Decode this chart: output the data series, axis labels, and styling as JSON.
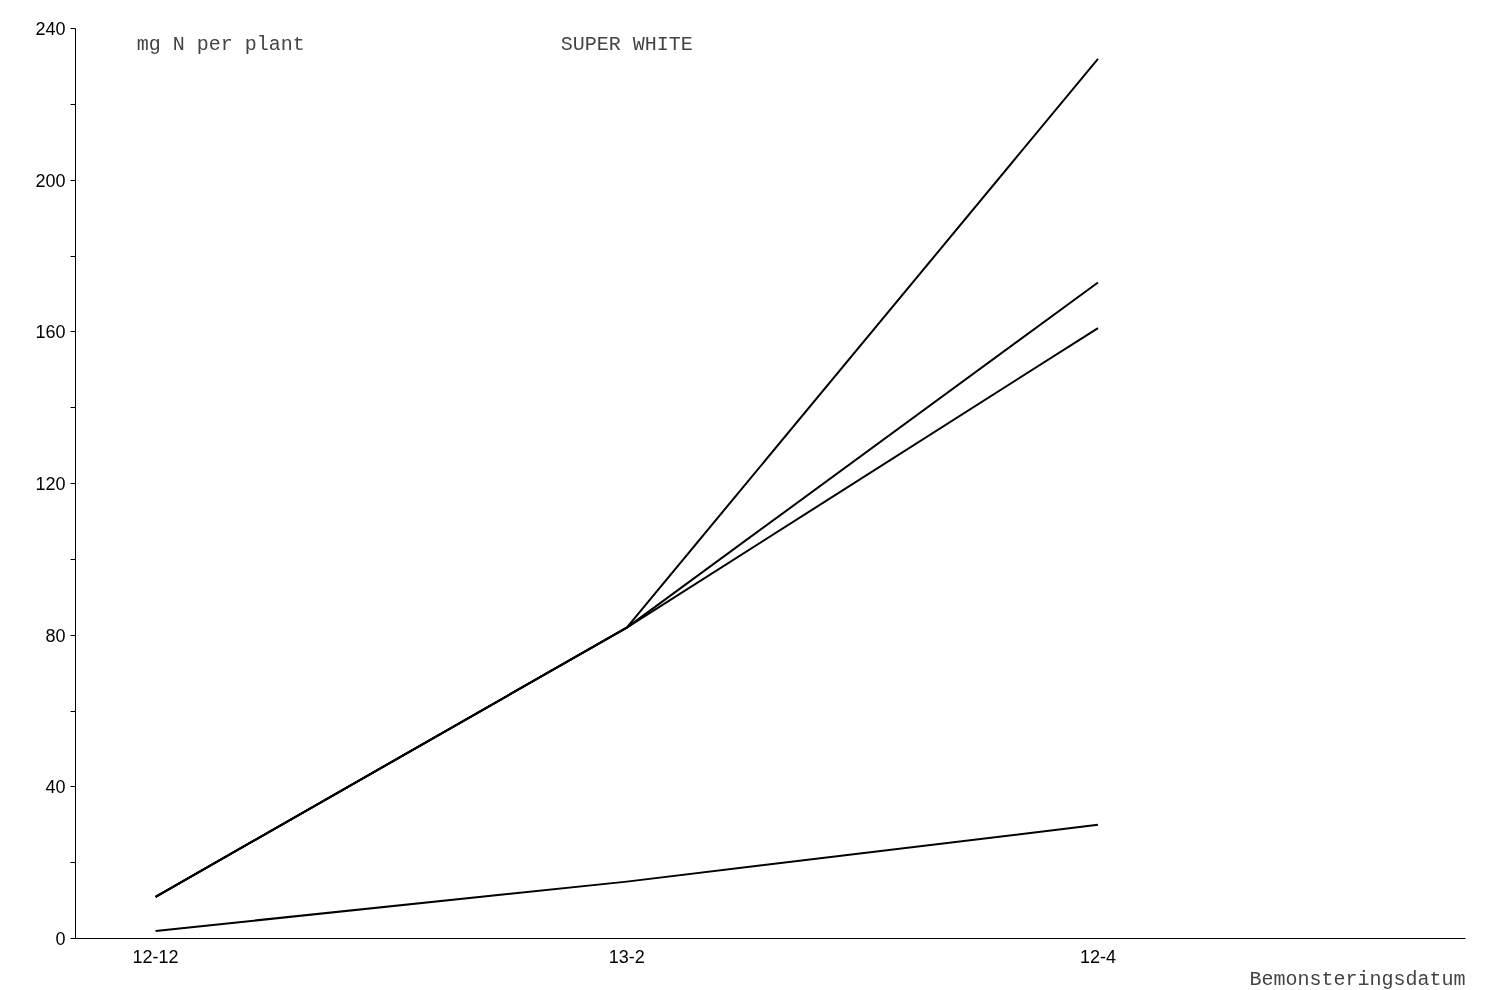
{
  "chart_data": {
    "type": "line",
    "title": "SUPER WHITE",
    "ylabel": "mg N per plant",
    "xlabel": "Bemonsteringsdatum",
    "categories": [
      "12-12",
      "13-2",
      "12-4"
    ],
    "series": [
      {
        "color": "#000000",
        "values": [
          11,
          82,
          232
        ]
      },
      {
        "color": "#000000",
        "values": [
          11,
          82,
          173
        ]
      },
      {
        "color": "#000000",
        "values": [
          11,
          82,
          161
        ]
      },
      {
        "color": "#000000",
        "values": [
          2,
          15,
          30
        ]
      }
    ],
    "ylim": [
      0,
      240
    ],
    "yticks": [
      0,
      {
        "value": 20,
        "label": null
      },
      40,
      {
        "value": 60,
        "label": null
      },
      80,
      {
        "value": 100,
        "label": null
      },
      120,
      {
        "value": 140,
        "label": null
      },
      160,
      {
        "value": 180,
        "label": null
      },
      200,
      {
        "value": 220,
        "label": null
      },
      240
    ],
    "grid": false,
    "marker": "none",
    "line_style": "solid"
  }
}
